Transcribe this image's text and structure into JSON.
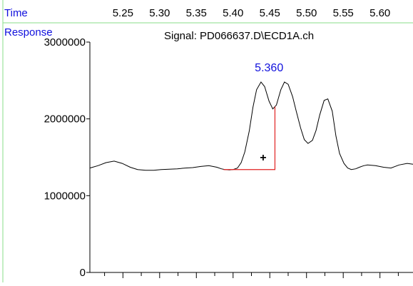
{
  "header": {
    "time_label": "Time",
    "response_label": "Response"
  },
  "colors": {
    "label_blue": "#1010dd",
    "frame_green": "#88dd88",
    "trace": "#000000",
    "baseline_red": "#e02020"
  },
  "chart_data": {
    "type": "line",
    "title": "Signal: PD066637.D\\ECD1A.ch",
    "xlabel": "Time",
    "ylabel": "Response",
    "xlim": [
      5.205,
      5.645
    ],
    "ylim": [
      0,
      3000000
    ],
    "x_ticks": [
      "5.25",
      "5.30",
      "5.35",
      "5.40",
      "5.45",
      "5.50",
      "5.55",
      "5.60"
    ],
    "y_ticks": [
      "0",
      "1000000",
      "2000000",
      "3000000"
    ],
    "grid": false,
    "legend": "none",
    "series": [
      {
        "x": [
          5.205,
          5.216,
          5.227,
          5.238,
          5.249,
          5.26,
          5.27,
          5.281,
          5.292,
          5.302,
          5.313,
          5.324,
          5.335,
          5.345,
          5.356,
          5.367,
          5.378,
          5.384,
          5.389,
          5.395,
          5.4,
          5.406,
          5.411,
          5.416,
          5.422,
          5.427,
          5.432,
          5.438,
          5.443,
          5.449,
          5.454,
          5.459,
          5.465,
          5.47,
          5.475,
          5.481,
          5.486,
          5.492,
          5.497,
          5.502,
          5.508,
          5.513,
          5.518,
          5.524,
          5.529,
          5.535,
          5.54,
          5.545,
          5.551,
          5.556,
          5.561,
          5.567,
          5.572,
          5.578,
          5.583,
          5.594,
          5.605,
          5.615,
          5.626,
          5.637,
          5.645
        ],
        "values": [
          1360000,
          1390000,
          1430000,
          1450000,
          1420000,
          1370000,
          1340000,
          1330000,
          1330000,
          1340000,
          1345000,
          1350000,
          1360000,
          1365000,
          1380000,
          1390000,
          1370000,
          1350000,
          1340000,
          1335000,
          1340000,
          1360000,
          1430000,
          1570000,
          1840000,
          2150000,
          2380000,
          2480000,
          2420000,
          2230000,
          2130000,
          2180000,
          2380000,
          2480000,
          2450000,
          2290000,
          2100000,
          1880000,
          1730000,
          1680000,
          1720000,
          1850000,
          2050000,
          2240000,
          2260000,
          2100000,
          1780000,
          1550000,
          1420000,
          1360000,
          1340000,
          1350000,
          1370000,
          1390000,
          1400000,
          1390000,
          1370000,
          1360000,
          1400000,
          1420000,
          1410000
        ]
      }
    ],
    "annotations": [
      {
        "text": "5.360",
        "x": 5.449,
        "y": 2620000
      },
      {
        "text": "+",
        "x": 5.441,
        "y": 1450000
      }
    ],
    "integration_baseline": {
      "start": {
        "x": 5.387,
        "y": 1340000
      },
      "end": {
        "x": 5.457,
        "y": 1340000
      },
      "drop_to": {
        "x": 5.457,
        "y": 2160000
      }
    }
  }
}
